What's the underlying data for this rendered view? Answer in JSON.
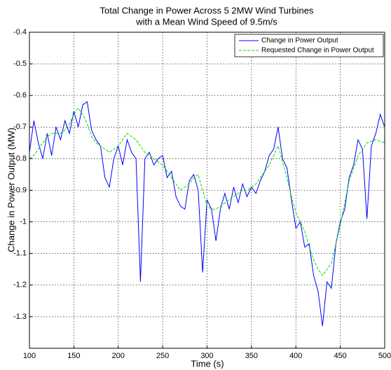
{
  "chart_data": {
    "type": "line",
    "title": [
      "Total Change in Power Across 5 2MW Wind Turbines",
      "with a Mean Wind Speed of 9.5m/s"
    ],
    "xlabel": "Time (s)",
    "ylabel": "Change in Power Output (MW)",
    "x": [
      100,
      105,
      110,
      115,
      120,
      125,
      130,
      135,
      140,
      145,
      150,
      155,
      160,
      165,
      170,
      175,
      180,
      185,
      190,
      195,
      200,
      205,
      210,
      215,
      220,
      225,
      230,
      235,
      240,
      245,
      250,
      255,
      260,
      265,
      270,
      275,
      280,
      285,
      290,
      295,
      300,
      305,
      310,
      315,
      320,
      325,
      330,
      335,
      340,
      345,
      350,
      355,
      360,
      365,
      370,
      375,
      380,
      385,
      390,
      395,
      400,
      405,
      410,
      415,
      420,
      425,
      430,
      435,
      440,
      445,
      450,
      455,
      460,
      465,
      470,
      475,
      480,
      485,
      490,
      495,
      500
    ],
    "series": [
      {
        "name": "Change in Power Output",
        "color": "#0000ff",
        "dash": false,
        "values": [
          -0.78,
          -0.68,
          -0.75,
          -0.8,
          -0.72,
          -0.79,
          -0.7,
          -0.74,
          -0.68,
          -0.72,
          -0.65,
          -0.7,
          -0.63,
          -0.62,
          -0.71,
          -0.74,
          -0.76,
          -0.86,
          -0.89,
          -0.8,
          -0.76,
          -0.82,
          -0.74,
          -0.78,
          -0.8,
          -1.19,
          -0.8,
          -0.78,
          -0.82,
          -0.8,
          -0.79,
          -0.86,
          -0.84,
          -0.92,
          -0.95,
          -0.96,
          -0.87,
          -0.85,
          -0.9,
          -1.16,
          -0.93,
          -0.96,
          -1.06,
          -0.96,
          -0.91,
          -0.96,
          -0.89,
          -0.94,
          -0.88,
          -0.92,
          -0.89,
          -0.91,
          -0.87,
          -0.84,
          -0.79,
          -0.77,
          -0.7,
          -0.8,
          -0.83,
          -0.93,
          -1.02,
          -1.0,
          -1.08,
          -1.07,
          -1.17,
          -1.22,
          -1.33,
          -1.19,
          -1.21,
          -1.07,
          -1.0,
          -0.96,
          -0.86,
          -0.82,
          -0.74,
          -0.77,
          -0.99,
          -0.76,
          -0.72,
          -0.66,
          -0.7
        ]
      },
      {
        "name": "Requested Change in Power Output",
        "color": "#00dd00",
        "dash": true,
        "values": [
          -0.8,
          -0.79,
          -0.77,
          -0.75,
          -0.73,
          -0.72,
          -0.72,
          -0.72,
          -0.71,
          -0.69,
          -0.66,
          -0.64,
          -0.66,
          -0.69,
          -0.73,
          -0.75,
          -0.76,
          -0.77,
          -0.78,
          -0.77,
          -0.76,
          -0.74,
          -0.72,
          -0.73,
          -0.74,
          -0.76,
          -0.78,
          -0.79,
          -0.8,
          -0.81,
          -0.82,
          -0.84,
          -0.86,
          -0.88,
          -0.9,
          -0.89,
          -0.88,
          -0.86,
          -0.85,
          -0.9,
          -0.95,
          -0.96,
          -0.96,
          -0.95,
          -0.94,
          -0.93,
          -0.92,
          -0.91,
          -0.9,
          -0.9,
          -0.89,
          -0.88,
          -0.86,
          -0.84,
          -0.82,
          -0.79,
          -0.76,
          -0.81,
          -0.86,
          -0.92,
          -0.97,
          -1.0,
          -1.03,
          -1.08,
          -1.12,
          -1.15,
          -1.17,
          -1.15,
          -1.13,
          -1.07,
          -1.01,
          -0.94,
          -0.87,
          -0.83,
          -0.79,
          -0.77,
          -0.75,
          -0.745,
          -0.74,
          -0.745,
          -0.75
        ]
      }
    ],
    "xlim": [
      100,
      500
    ],
    "xticks": [
      100,
      150,
      200,
      250,
      300,
      350,
      400,
      450,
      500
    ],
    "ylim": [
      -1.4,
      -0.4
    ],
    "yticks": [
      -1.3,
      -1.2,
      -1.1,
      -1,
      -0.9,
      -0.8,
      -0.7,
      -0.6,
      -0.5,
      -0.4
    ],
    "grid": true,
    "legend": "upper right"
  }
}
